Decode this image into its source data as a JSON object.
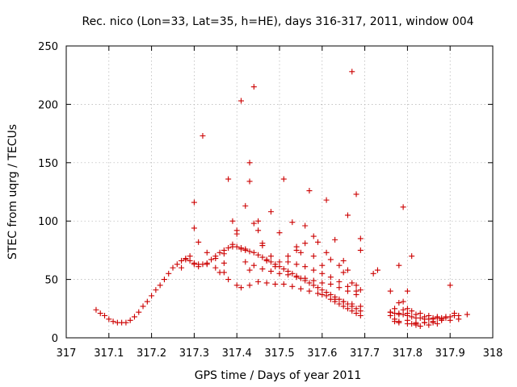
{
  "chart_data": {
    "type": "scatter",
    "title": "Rec. nico (Lon=33, Lat=35, h=HE), days 316-317, 2011, window 004",
    "xlabel": "GPS time / Days of year 2011",
    "ylabel": "STEC from uqrg / TECUs",
    "xlim": [
      317,
      318
    ],
    "ylim": [
      0,
      250
    ],
    "xticks": [
      "317",
      "317.1",
      "317.2",
      "317.3",
      "317.4",
      "317.5",
      "317.6",
      "317.7",
      "317.8",
      "317.9",
      "318"
    ],
    "yticks": [
      "0",
      "50",
      "100",
      "150",
      "200",
      "250"
    ],
    "grid": true,
    "marker": "plus",
    "color": "#cc0000",
    "series": [
      {
        "x": [
          317.07,
          317.08,
          317.09,
          317.1,
          317.11,
          317.12,
          317.13,
          317.14,
          317.15,
          317.16,
          317.17,
          317.18,
          317.19,
          317.2,
          317.21,
          317.22,
          317.23,
          317.24,
          317.25,
          317.26,
          317.27,
          317.28,
          317.29,
          317.3,
          317.31,
          317.32,
          317.33,
          317.34,
          317.35,
          317.36,
          317.37,
          317.38,
          317.39,
          317.4,
          317.41,
          317.42,
          317.43,
          317.44,
          317.45,
          317.46,
          317.47,
          317.48,
          317.49,
          317.5,
          317.51,
          317.52,
          317.53,
          317.54,
          317.55,
          317.56,
          317.57,
          317.58,
          317.59,
          317.6,
          317.61,
          317.62,
          317.63,
          317.64,
          317.65,
          317.66,
          317.67,
          317.68,
          317.69,
          317.76,
          317.77,
          317.78,
          317.79,
          317.8,
          317.81,
          317.82,
          317.83,
          317.84,
          317.85,
          317.86,
          317.87,
          317.88,
          317.89,
          317.9,
          317.91,
          317.92,
          317.94
        ],
        "y": [
          24,
          21,
          19,
          16,
          14,
          13,
          13,
          13,
          15,
          18,
          22,
          27,
          31,
          36,
          41,
          45,
          50,
          55,
          60,
          63,
          66,
          67,
          66,
          64,
          63,
          63,
          64,
          67,
          70,
          73,
          75,
          77,
          78,
          78,
          77,
          76,
          74,
          73,
          71,
          69,
          67,
          65,
          63,
          61,
          59,
          57,
          55,
          53,
          51,
          49,
          47,
          45,
          43,
          41,
          39,
          37,
          35,
          33,
          31,
          29,
          27,
          25,
          23,
          22,
          21,
          20,
          20,
          19,
          18,
          17,
          17,
          16,
          16,
          16,
          17,
          17,
          18,
          18,
          19,
          19,
          20
        ]
      },
      {
        "x": [
          317.27,
          317.29,
          317.3,
          317.31,
          317.33,
          317.35,
          317.37,
          317.38,
          317.4,
          317.41,
          317.43,
          317.45,
          317.47,
          317.49,
          317.51,
          317.53,
          317.55,
          317.57,
          317.59,
          317.61,
          317.63,
          317.65,
          317.67,
          317.69,
          317.76,
          317.78,
          317.8,
          317.82,
          317.84,
          317.86,
          317.88,
          317.9,
          317.92
        ],
        "y": [
          60,
          70,
          63,
          61,
          63,
          60,
          56,
          50,
          45,
          43,
          45,
          48,
          47,
          46,
          46,
          44,
          42,
          40,
          38,
          36,
          33,
          31,
          29,
          27,
          22,
          21,
          21,
          20,
          18,
          17,
          16,
          15,
          16
        ]
      },
      {
        "x": [
          317.28,
          317.3,
          317.31,
          317.33,
          317.35,
          317.37,
          317.39,
          317.4,
          317.42,
          317.44,
          317.46,
          317.48,
          317.5,
          317.52,
          317.54,
          317.56,
          317.58,
          317.6,
          317.62,
          317.64,
          317.66,
          317.68,
          317.77,
          317.79,
          317.81,
          317.83,
          317.85,
          317.87,
          317.89,
          317.91
        ],
        "y": [
          68,
          94,
          82,
          73,
          68,
          64,
          80,
          89,
          65,
          62,
          59,
          57,
          55,
          54,
          52,
          51,
          49,
          47,
          46,
          43,
          40,
          37,
          25,
          24,
          23,
          21,
          19,
          18,
          17,
          21
        ]
      },
      {
        "x": [
          317.37,
          317.39,
          317.4,
          317.41,
          317.42,
          317.43,
          317.45,
          317.46,
          317.48,
          317.5,
          317.52,
          317.54,
          317.56,
          317.58,
          317.6,
          317.62,
          317.64,
          317.66,
          317.68,
          317.77,
          317.78,
          317.8,
          317.82,
          317.84,
          317.86,
          317.88
        ],
        "y": [
          72,
          100,
          92,
          76,
          75,
          58,
          100,
          79,
          70,
          65,
          65,
          63,
          61,
          58,
          55,
          52,
          48,
          44,
          40,
          14,
          13,
          12,
          12,
          13,
          14,
          15
        ]
      },
      {
        "x": [
          317.3,
          317.32,
          317.38,
          317.41,
          317.42,
          317.43,
          317.43,
          317.44,
          317.45,
          317.51,
          317.57,
          317.61,
          317.66,
          317.67,
          317.68,
          317.69,
          317.79,
          317.76,
          317.78,
          317.8,
          317.81,
          317.69,
          317.72,
          317.73,
          317.65
        ],
        "y": [
          116,
          173,
          136,
          203,
          113,
          150,
          134,
          215,
          92,
          136,
          126,
          118,
          105,
          228,
          123,
          85,
          112,
          40,
          62,
          40,
          70,
          75,
          55,
          58,
          66
        ]
      },
      {
        "x": [
          317.36,
          317.44,
          317.47,
          317.48,
          317.5,
          317.53,
          317.54,
          317.55,
          317.56,
          317.58,
          317.59,
          317.61,
          317.63,
          317.65,
          317.67,
          317.69,
          317.68,
          317.66,
          317.64,
          317.62,
          317.6,
          317.58,
          317.56,
          317.54,
          317.52,
          317.49,
          317.46,
          317.78,
          317.8,
          317.82,
          317.84,
          317.86,
          317.9
        ],
        "y": [
          56,
          98,
          66,
          108,
          90,
          99,
          78,
          73,
          96,
          87,
          82,
          73,
          84,
          56,
          47,
          41,
          45,
          58,
          62,
          67,
          62,
          70,
          81,
          75,
          70,
          61,
          81,
          30,
          15,
          13,
          13,
          13,
          45
        ]
      },
      {
        "x": [
          317.6,
          317.62,
          317.63,
          317.64,
          317.65,
          317.66,
          317.67,
          317.68,
          317.69,
          317.76,
          317.77,
          317.78,
          317.79,
          317.8,
          317.81,
          317.82,
          317.83,
          317.85,
          317.87
        ],
        "y": [
          37,
          33,
          31,
          29,
          27,
          25,
          23,
          21,
          19,
          19,
          16,
          14,
          31,
          25,
          12,
          11,
          10,
          11,
          12
        ]
      }
    ]
  }
}
